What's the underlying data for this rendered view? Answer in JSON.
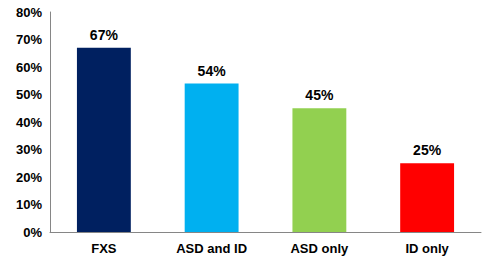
{
  "chart_data": {
    "type": "bar",
    "categories": [
      "FXS",
      "ASD and ID",
      "ASD only",
      "ID only"
    ],
    "values": [
      67,
      54,
      45,
      25
    ],
    "value_labels": [
      "67%",
      "54%",
      "45%",
      "25%"
    ],
    "colors": [
      "#002060",
      "#00b0f0",
      "#92d050",
      "#ff0000"
    ],
    "ylim": [
      0,
      80
    ],
    "yticks": [
      {
        "value": 0,
        "label": "0%"
      },
      {
        "value": 10,
        "label": "10%"
      },
      {
        "value": 20,
        "label": "20%"
      },
      {
        "value": 30,
        "label": "30%"
      },
      {
        "value": 40,
        "label": "40%"
      },
      {
        "value": 50,
        "label": "50%"
      },
      {
        "value": 60,
        "label": "60%"
      },
      {
        "value": 70,
        "label": "70%"
      },
      {
        "value": 80,
        "label": "80%"
      }
    ],
    "grid": false,
    "data_labels": true
  }
}
